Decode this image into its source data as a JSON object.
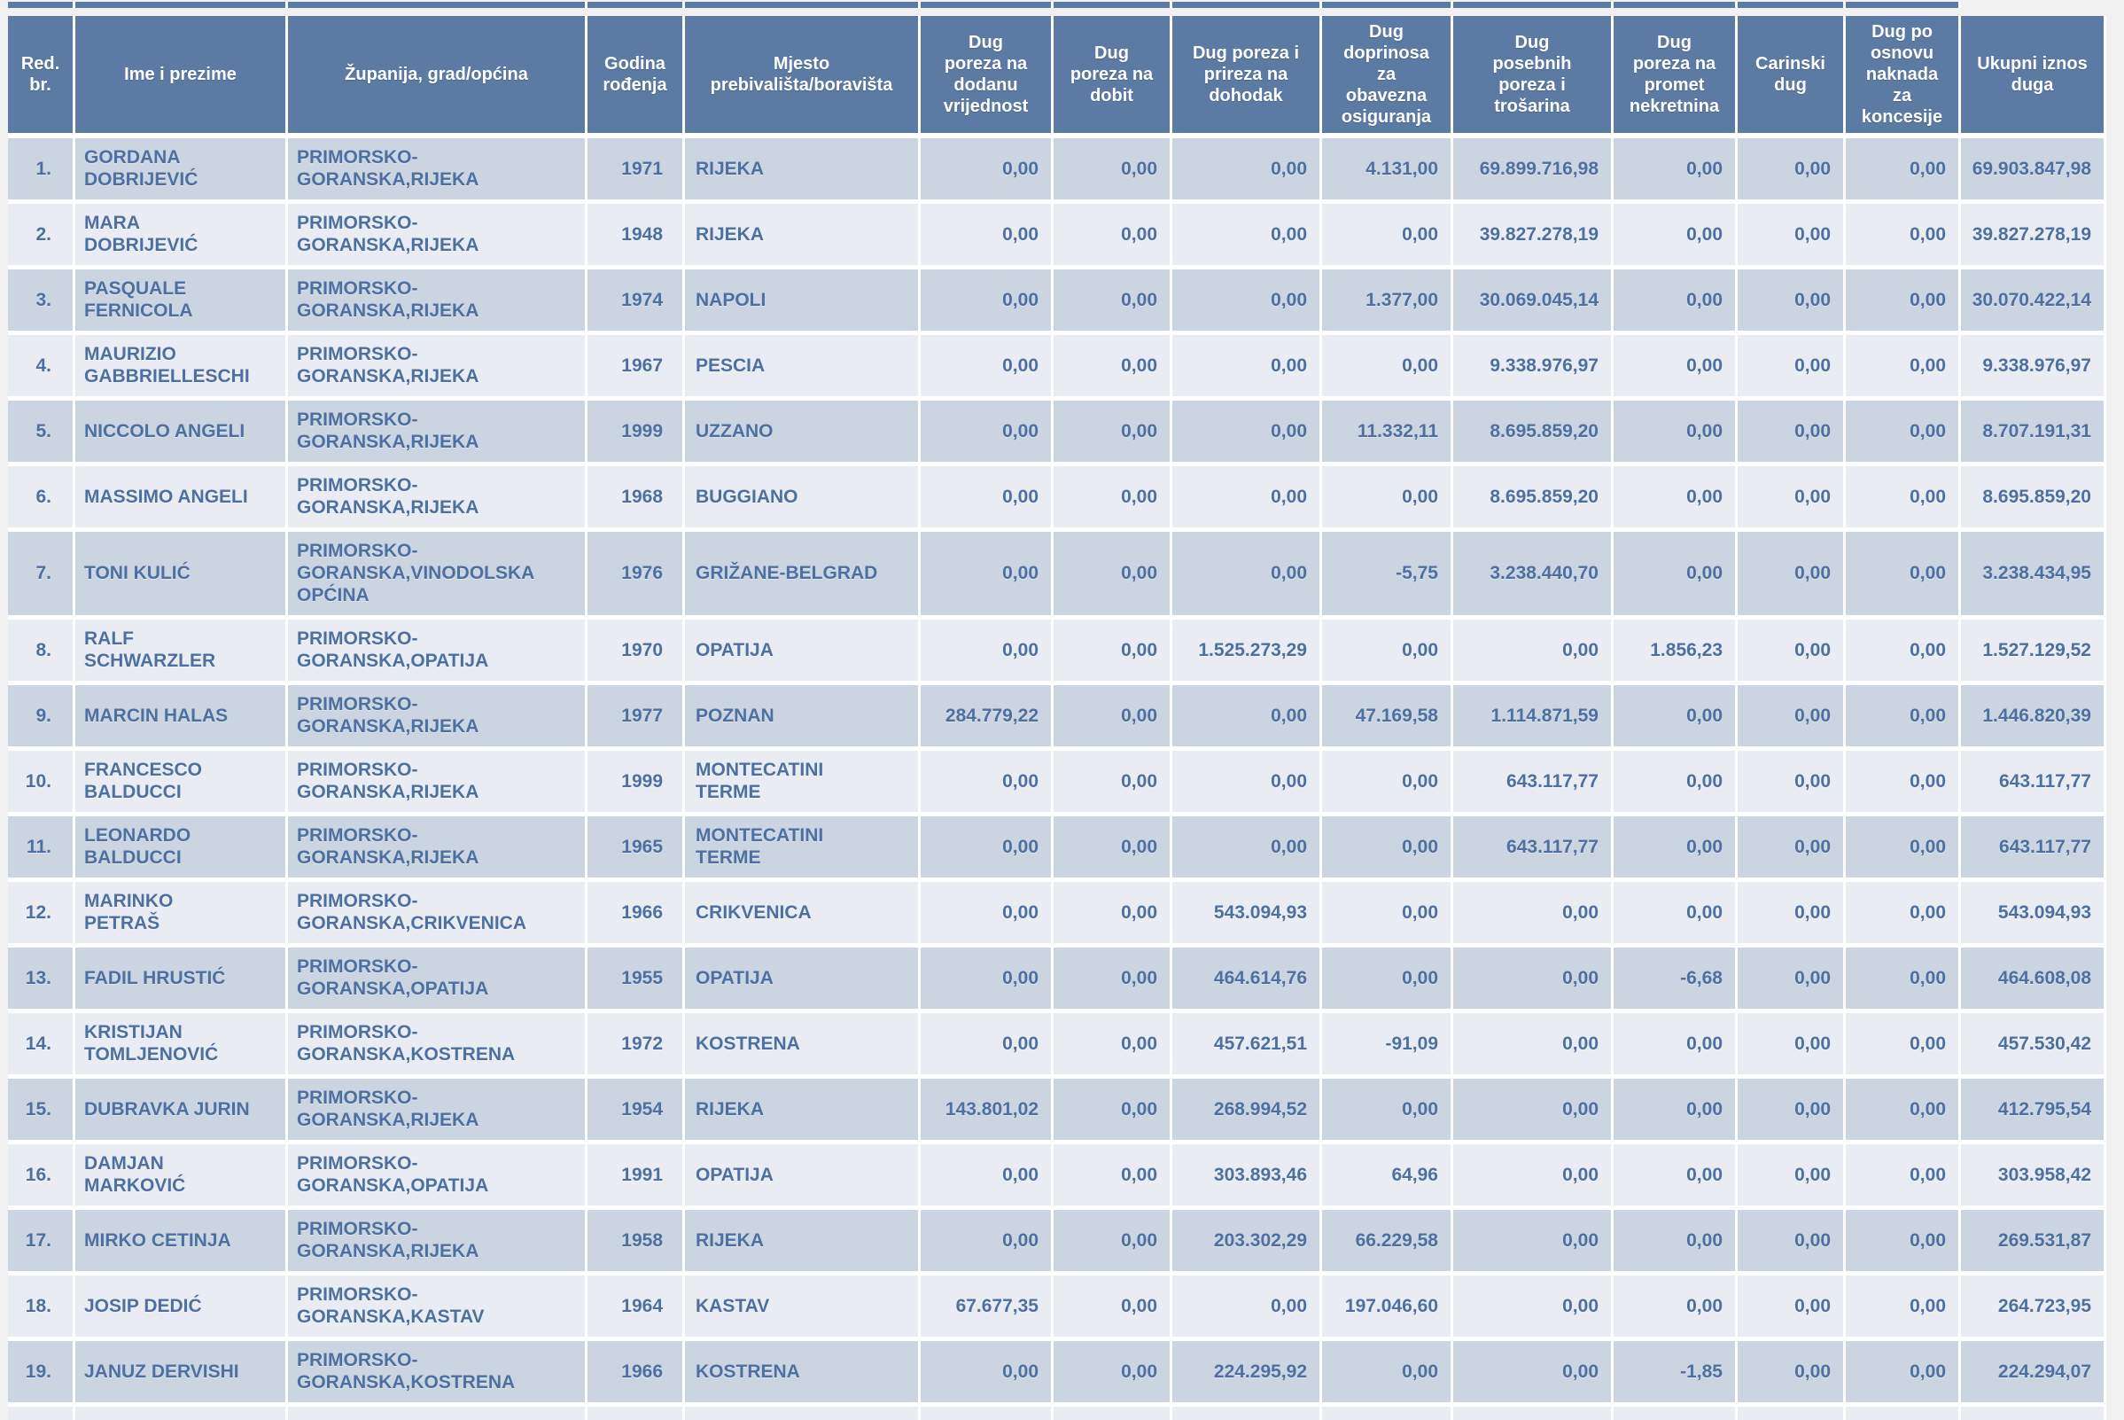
{
  "page": {
    "colors": {
      "page_bg": "#f1f1f1",
      "header_bg": "#5b7ba5",
      "header_text": "#ffffff",
      "row_odd_bg": "#cbd4e1",
      "row_even_bg": "#e9edf3",
      "cell_text": "#4d70a0",
      "grid_line": "#ffffff"
    }
  },
  "table": {
    "columns": [
      {
        "key": "redni-broj",
        "label": "Red.\nbr."
      },
      {
        "key": "ime-prezime",
        "label": "Ime i prezime"
      },
      {
        "key": "zupanija",
        "label": "Županija, grad/općina"
      },
      {
        "key": "godina",
        "label": "Godina\nrođenja"
      },
      {
        "key": "mjesto",
        "label": "Mjesto\nprebivališta/boravišta"
      },
      {
        "key": "dug-pdv",
        "label": "Dug\nporeza na\ndodanu\nvrijednost"
      },
      {
        "key": "dug-dobit",
        "label": "Dug\nporeza na\ndobit"
      },
      {
        "key": "dug-dohodak",
        "label": "Dug poreza i\nprireza na\ndohodak"
      },
      {
        "key": "dug-doprinosi",
        "label": "Dug\ndoprinosa\nza\nobavezna\nosiguranja"
      },
      {
        "key": "dug-trosarine",
        "label": "Dug\nposebnih\nporeza i\ntrošarina"
      },
      {
        "key": "dug-nekretnine",
        "label": "Dug\nporeza na\npromet\nnekretnina"
      },
      {
        "key": "carinski-dug",
        "label": "Carinski\ndug"
      },
      {
        "key": "dug-koncesije",
        "label": "Dug po\nosnovu\nnaknada\nza\nkoncesije"
      },
      {
        "key": "ukupni-iznos",
        "label": "Ukupni iznos\nduga"
      }
    ],
    "rows": [
      {
        "cells": [
          "1.",
          "GORDANA\nDOBRIJEVIĆ",
          "PRIMORSKO-\nGORANSKA,RIJEKA",
          "1971",
          "RIJEKA",
          "0,00",
          "0,00",
          "0,00",
          "4.131,00",
          "69.899.716,98",
          "0,00",
          "0,00",
          "0,00",
          "69.903.847,98"
        ]
      },
      {
        "cells": [
          "2.",
          "MARA\nDOBRIJEVIĆ",
          "PRIMORSKO-\nGORANSKA,RIJEKA",
          "1948",
          "RIJEKA",
          "0,00",
          "0,00",
          "0,00",
          "0,00",
          "39.827.278,19",
          "0,00",
          "0,00",
          "0,00",
          "39.827.278,19"
        ]
      },
      {
        "cells": [
          "3.",
          "PASQUALE\nFERNICOLA",
          "PRIMORSKO-\nGORANSKA,RIJEKA",
          "1974",
          "NAPOLI",
          "0,00",
          "0,00",
          "0,00",
          "1.377,00",
          "30.069.045,14",
          "0,00",
          "0,00",
          "0,00",
          "30.070.422,14"
        ]
      },
      {
        "cells": [
          "4.",
          "MAURIZIO\nGABBRIELLESCHI",
          "PRIMORSKO-\nGORANSKA,RIJEKA",
          "1967",
          "PESCIA",
          "0,00",
          "0,00",
          "0,00",
          "0,00",
          "9.338.976,97",
          "0,00",
          "0,00",
          "0,00",
          "9.338.976,97"
        ]
      },
      {
        "cells": [
          "5.",
          "NICCOLO ANGELI",
          "PRIMORSKO-\nGORANSKA,RIJEKA",
          "1999",
          "UZZANO",
          "0,00",
          "0,00",
          "0,00",
          "11.332,11",
          "8.695.859,20",
          "0,00",
          "0,00",
          "0,00",
          "8.707.191,31"
        ]
      },
      {
        "cells": [
          "6.",
          "MASSIMO ANGELI",
          "PRIMORSKO-\nGORANSKA,RIJEKA",
          "1968",
          "BUGGIANO",
          "0,00",
          "0,00",
          "0,00",
          "0,00",
          "8.695.859,20",
          "0,00",
          "0,00",
          "0,00",
          "8.695.859,20"
        ]
      },
      {
        "cells": [
          "7.",
          "TONI KULIĆ",
          "PRIMORSKO-\nGORANSKA,VINODOLSKA\nOPĆINA",
          "1976",
          "GRIŽANE-BELGRAD",
          "0,00",
          "0,00",
          "0,00",
          "-5,75",
          "3.238.440,70",
          "0,00",
          "0,00",
          "0,00",
          "3.238.434,95"
        ]
      },
      {
        "cells": [
          "8.",
          "RALF\nSCHWARZLER",
          "PRIMORSKO-\nGORANSKA,OPATIJA",
          "1970",
          "OPATIJA",
          "0,00",
          "0,00",
          "1.525.273,29",
          "0,00",
          "0,00",
          "1.856,23",
          "0,00",
          "0,00",
          "1.527.129,52"
        ]
      },
      {
        "cells": [
          "9.",
          "MARCIN HALAS",
          "PRIMORSKO-\nGORANSKA,RIJEKA",
          "1977",
          "POZNAN",
          "284.779,22",
          "0,00",
          "0,00",
          "47.169,58",
          "1.114.871,59",
          "0,00",
          "0,00",
          "0,00",
          "1.446.820,39"
        ]
      },
      {
        "cells": [
          "10.",
          "FRANCESCO\nBALDUCCI",
          "PRIMORSKO-\nGORANSKA,RIJEKA",
          "1999",
          "MONTECATINI\nTERME",
          "0,00",
          "0,00",
          "0,00",
          "0,00",
          "643.117,77",
          "0,00",
          "0,00",
          "0,00",
          "643.117,77"
        ]
      },
      {
        "cells": [
          "11.",
          "LEONARDO\nBALDUCCI",
          "PRIMORSKO-\nGORANSKA,RIJEKA",
          "1965",
          "MONTECATINI\nTERME",
          "0,00",
          "0,00",
          "0,00",
          "0,00",
          "643.117,77",
          "0,00",
          "0,00",
          "0,00",
          "643.117,77"
        ]
      },
      {
        "cells": [
          "12.",
          "MARINKO\nPETRAŠ",
          "PRIMORSKO-\nGORANSKA,CRIKVENICA",
          "1966",
          "CRIKVENICA",
          "0,00",
          "0,00",
          "543.094,93",
          "0,00",
          "0,00",
          "0,00",
          "0,00",
          "0,00",
          "543.094,93"
        ]
      },
      {
        "cells": [
          "13.",
          "FADIL HRUSTIĆ",
          "PRIMORSKO-\nGORANSKA,OPATIJA",
          "1955",
          "OPATIJA",
          "0,00",
          "0,00",
          "464.614,76",
          "0,00",
          "0,00",
          "-6,68",
          "0,00",
          "0,00",
          "464.608,08"
        ]
      },
      {
        "cells": [
          "14.",
          "KRISTIJAN\nTOMLJENOVIĆ",
          "PRIMORSKO-\nGORANSKA,KOSTRENA",
          "1972",
          "KOSTRENA",
          "0,00",
          "0,00",
          "457.621,51",
          "-91,09",
          "0,00",
          "0,00",
          "0,00",
          "0,00",
          "457.530,42"
        ]
      },
      {
        "cells": [
          "15.",
          "DUBRAVKA JURIN",
          "PRIMORSKO-\nGORANSKA,RIJEKA",
          "1954",
          "RIJEKA",
          "143.801,02",
          "0,00",
          "268.994,52",
          "0,00",
          "0,00",
          "0,00",
          "0,00",
          "0,00",
          "412.795,54"
        ]
      },
      {
        "cells": [
          "16.",
          "DAMJAN\nMARKOVIĆ",
          "PRIMORSKO-\nGORANSKA,OPATIJA",
          "1991",
          "OPATIJA",
          "0,00",
          "0,00",
          "303.893,46",
          "64,96",
          "0,00",
          "0,00",
          "0,00",
          "0,00",
          "303.958,42"
        ]
      },
      {
        "cells": [
          "17.",
          "MIRKO CETINJA",
          "PRIMORSKO-\nGORANSKA,RIJEKA",
          "1958",
          "RIJEKA",
          "0,00",
          "0,00",
          "203.302,29",
          "66.229,58",
          "0,00",
          "0,00",
          "0,00",
          "0,00",
          "269.531,87"
        ]
      },
      {
        "cells": [
          "18.",
          "JOSIP DEDIĆ",
          "PRIMORSKO-\nGORANSKA,KASTAV",
          "1964",
          "KASTAV",
          "67.677,35",
          "0,00",
          "0,00",
          "197.046,60",
          "0,00",
          "0,00",
          "0,00",
          "0,00",
          "264.723,95"
        ]
      },
      {
        "cells": [
          "19.",
          "JANUZ DERVISHI",
          "PRIMORSKO-\nGORANSKA,KOSTRENA",
          "1966",
          "KOSTRENA",
          "0,00",
          "0,00",
          "224.295,92",
          "0,00",
          "0,00",
          "-1,85",
          "0,00",
          "0,00",
          "224.294,07"
        ]
      }
    ]
  }
}
